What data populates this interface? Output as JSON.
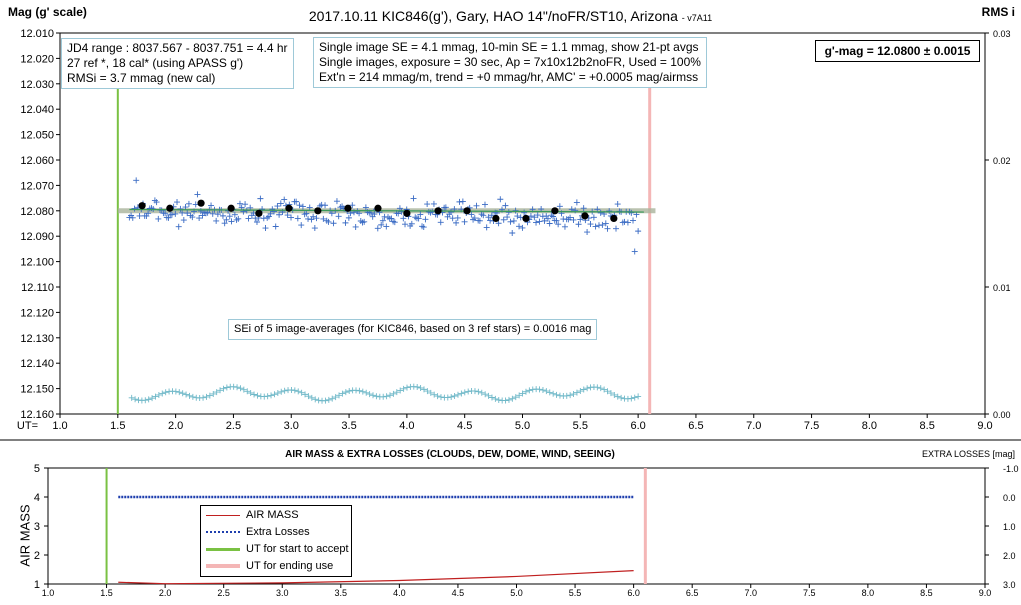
{
  "header": {
    "title": "2017.10.11  KIC846(g'),  Gary,  HAO 14\"/noFR/ST10,  Arizona",
    "version": "- v7A11",
    "left_axis_label": "Mag (g' scale)",
    "right_axis_label": "RMS i"
  },
  "info": {
    "box1": [
      "JD4 range : 8037.567 - 8037.751 =  4.4  hr",
      "27 ref *, 18 cal* (using APASS g')",
      "RMSi = 3.7 mmag (new cal)"
    ],
    "box2": [
      "Single image SE = 4.1 mmag, 10-min SE = 1.1 mmag, show 21-pt avgs",
      "Single images, exposure = 30 sec, Ap = 7x10x12b2noFR, Used = 100%",
      "Ext'n = 214 mmag/m, trend = +0 mmag/hr, AMC' = +0.0005 mag/airmss"
    ],
    "gmag": "g'-mag = 12.0800 ± 0.0015",
    "sei": "SEi of 5 image-averages (for KIC846, based on 3 ref stars) = 0.0016 mag"
  },
  "bottom": {
    "title": "AIR MASS & EXTRA LOSSES (CLOUDS, DEW, DOME, WIND, SEEING)",
    "right_axis_label": "EXTRA LOSSES [mag]",
    "left_axis_label": "AIR MASS",
    "legend": [
      "AIR MASS",
      "Extra Losses",
      "UT for start to accept",
      "UT for ending use"
    ]
  },
  "colors": {
    "data": "#3a6bc4",
    "avg": "#000000",
    "mean_line": "#aab49c",
    "fit": "#3a9a5a",
    "rms": "#6fb8c8",
    "start": "#7ac143",
    "end": "#f4b6b6",
    "airmass": "#c02020",
    "losses": "#1f3fae"
  },
  "chart_data": [
    {
      "type": "scatter",
      "title": "2017.10.11  KIC846(g'),  Gary,  HAO 14\"/noFR/ST10,  Arizona",
      "xlabel": "UT=",
      "ylabel": "Mag (g' scale)",
      "y2label": "RMS i",
      "xlim": [
        1.0,
        9.0
      ],
      "ylim": [
        12.16,
        12.01
      ],
      "y2lim": [
        0.0,
        0.03
      ],
      "xticks": [
        "1.0",
        "1.5",
        "2.0",
        "2.5",
        "3.0",
        "3.5",
        "4.0",
        "4.5",
        "5.0",
        "5.5",
        "6.0",
        "6.5",
        "7.0",
        "7.5",
        "8.0",
        "8.5",
        "9.0"
      ],
      "yticks": [
        "12.010",
        "12.020",
        "12.030",
        "12.040",
        "12.050",
        "12.060",
        "12.070",
        "12.080",
        "12.090",
        "12.100",
        "12.110",
        "12.120",
        "12.130",
        "12.140",
        "12.150",
        "12.160"
      ],
      "y2ticks": [
        "0.03",
        "0.02",
        "0.01",
        "0.00"
      ],
      "mean_mag": 12.08,
      "start_ut": 1.5,
      "end_ut": 6.1,
      "single_images_ut_range": [
        1.6,
        6.0
      ],
      "averages": {
        "x": [
          1.71,
          1.95,
          2.22,
          2.48,
          2.72,
          2.98,
          3.23,
          3.49,
          3.75,
          4.0,
          4.27,
          4.52,
          4.77,
          5.03,
          5.28,
          5.54,
          5.79
        ],
        "y": [
          12.078,
          12.079,
          12.077,
          12.079,
          12.081,
          12.079,
          12.08,
          12.079,
          12.079,
          12.081,
          12.08,
          12.08,
          12.083,
          12.083,
          12.08,
          12.082,
          12.083
        ]
      },
      "rms_series_level_mag_scale": 12.152
    },
    {
      "type": "line",
      "title": "AIR MASS & EXTRA LOSSES (CLOUDS, DEW, DOME, WIND, SEEING)",
      "ylabel": "AIR MASS",
      "y2label": "EXTRA LOSSES [mag]",
      "xlim": [
        1.0,
        9.0
      ],
      "ylim": [
        1,
        5
      ],
      "y2lim": [
        3.0,
        -1.0
      ],
      "xticks": [
        "1.0",
        "1.5",
        "2.0",
        "2.5",
        "3.0",
        "3.5",
        "4.0",
        "4.5",
        "5.0",
        "5.5",
        "6.0",
        "6.5",
        "7.0",
        "7.5",
        "8.0",
        "8.5",
        "9.0"
      ],
      "yticks": [
        "1",
        "2",
        "3",
        "4",
        "5"
      ],
      "y2ticks": [
        "3.0",
        "2.0",
        "1.0",
        "0.0",
        "-1.0"
      ],
      "series": [
        {
          "name": "AIR MASS",
          "x": [
            1.6,
            2.0,
            3.0,
            4.0,
            5.0,
            6.0
          ],
          "y": [
            1.06,
            1.01,
            1.04,
            1.12,
            1.26,
            1.46
          ]
        },
        {
          "name": "Extra Losses",
          "x": [
            1.6,
            6.0
          ],
          "y": [
            0.0,
            0.0
          ]
        }
      ],
      "start_ut": 1.5,
      "end_ut": 6.1
    }
  ]
}
